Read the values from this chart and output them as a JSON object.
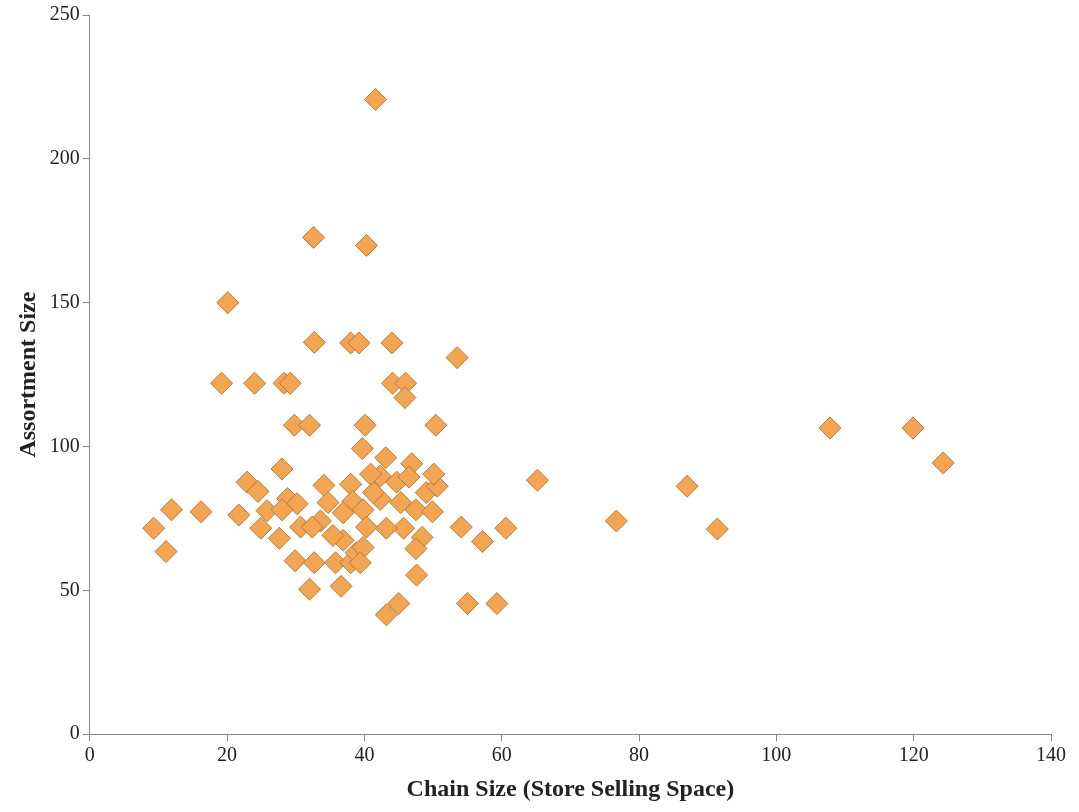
{
  "chart_data": {
    "type": "scatter",
    "xlabel": "Chain Size (Store Selling Space)",
    "ylabel": "Assortment Size",
    "xlim": [
      0,
      140
    ],
    "xticks": [
      0,
      20,
      40,
      60,
      80,
      100,
      120,
      140
    ],
    "ylim": [
      0,
      250
    ],
    "yticks": [
      0,
      50,
      100,
      150,
      200,
      250
    ],
    "grid": false,
    "legend": false,
    "marker": "diamond",
    "series": [
      {
        "color": "#f2a553",
        "x": [
          41.6,
          32.6,
          40.3,
          20.1,
          32.7,
          38,
          39.2,
          44,
          53.5,
          19.2,
          24,
          28.3,
          29.2,
          44.1,
          46,
          45.9,
          29.8,
          32,
          40.1,
          50.4,
          107.8,
          119.9,
          124.3,
          39.7,
          43.1,
          46.9,
          28,
          65.2,
          87,
          22.9,
          24.5,
          28.8,
          30.2,
          34.1,
          34.7,
          38,
          38.3,
          11.9,
          16.2,
          21.7,
          25.8,
          28,
          9.3,
          24.9,
          27.6,
          30.7,
          33.6,
          36.9,
          36.9,
          32.4,
          35.4,
          11.1,
          29.9,
          32.7,
          35.8,
          38,
          36.6,
          32,
          38.8,
          42.3,
          44.7,
          46.5,
          49,
          50.6,
          42.3,
          45.3,
          39.8,
          47.5,
          49.9,
          54.1,
          57.2,
          60.6,
          40.3,
          45.7,
          43.2,
          48.4,
          47.5,
          39.8,
          47.6,
          39.4,
          45,
          43.2,
          55,
          59.3,
          76.7,
          91.4,
          41.3,
          40.9,
          50.1
        ],
        "values": [
          220.6,
          172.7,
          169.9,
          150,
          136.2,
          136,
          136,
          136,
          130.9,
          122,
          122,
          122,
          122,
          122,
          122,
          117,
          107.4,
          107.4,
          107.4,
          107.4,
          106.4,
          106.4,
          94.3,
          99.3,
          96.1,
          94,
          92.2,
          88.3,
          86.2,
          87.6,
          84.4,
          81.9,
          80.1,
          86.5,
          80.5,
          86.9,
          80.9,
          78,
          77.3,
          76.2,
          77.7,
          78,
          71.6,
          71.6,
          68.1,
          72,
          74.1,
          77,
          67.4,
          72,
          69.1,
          63.5,
          60.3,
          59.6,
          59.6,
          59.6,
          51.4,
          50.4,
          63.1,
          89.7,
          87.6,
          89.4,
          84,
          86.2,
          81.6,
          80.5,
          78,
          78,
          77.3,
          72,
          67,
          71.6,
          72,
          71.6,
          71.6,
          68.4,
          64.5,
          64.9,
          55.3,
          59.6,
          45.4,
          41.5,
          45.4,
          45.4,
          74.1,
          71.3,
          84,
          90.4,
          90.4
        ]
      }
    ]
  }
}
